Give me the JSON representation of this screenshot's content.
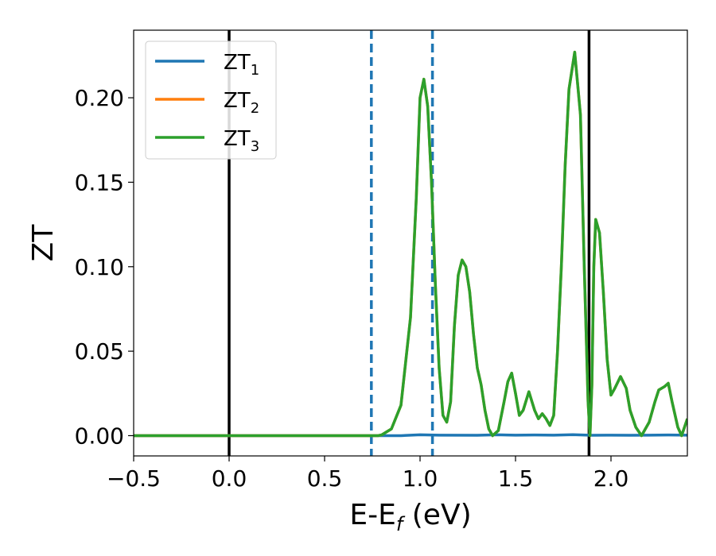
{
  "chart_data": {
    "type": "line",
    "xlabel": "E-E",
    "xlabel_subscript": "f",
    "xlabel_unit": " (eV)",
    "ylabel": "ZT",
    "xlim": [
      -0.5,
      2.4
    ],
    "ylim": [
      -0.012,
      0.24
    ],
    "xticks": [
      -0.5,
      0.0,
      0.5,
      1.0,
      1.5,
      2.0
    ],
    "xtick_labels": [
      "−0.5",
      "0.0",
      "0.5",
      "1.0",
      "1.5",
      "2.0"
    ],
    "yticks": [
      0.0,
      0.05,
      0.1,
      0.15,
      0.2
    ],
    "ytick_labels": [
      "0.00",
      "0.05",
      "0.10",
      "0.15",
      "0.20"
    ],
    "grid": false,
    "legend_position": "upper-left",
    "vertical_lines": [
      {
        "x": 0.0,
        "style": "solid",
        "color": "#000000"
      },
      {
        "x": 0.745,
        "style": "dashed",
        "color": "#1f77b4"
      },
      {
        "x": 1.065,
        "style": "dashed",
        "color": "#1f77b4"
      },
      {
        "x": 1.885,
        "style": "solid",
        "color": "#000000"
      }
    ],
    "series": [
      {
        "name": "ZT",
        "name_subscript": "1",
        "color": "#1f77b4",
        "points": [
          [
            -0.5,
            0.0
          ],
          [
            0.7,
            0.0
          ],
          [
            0.9,
            0.0
          ],
          [
            1.0,
            0.0005
          ],
          [
            1.1,
            0.0003
          ],
          [
            1.3,
            0.0002
          ],
          [
            1.4,
            0.0005
          ],
          [
            1.5,
            0.0003
          ],
          [
            1.6,
            0.0004
          ],
          [
            1.7,
            0.0003
          ],
          [
            1.8,
            0.0006
          ],
          [
            1.9,
            0.0002
          ],
          [
            2.0,
            0.0003
          ],
          [
            2.1,
            0.0002
          ],
          [
            2.2,
            0.0003
          ],
          [
            2.3,
            0.0004
          ],
          [
            2.4,
            0.0003
          ]
        ]
      },
      {
        "name": "ZT",
        "name_subscript": "2",
        "color": "#ff7f0e",
        "points": [
          [
            -0.5,
            0.0
          ],
          [
            0.78,
            0.0
          ],
          [
            0.8,
            0.0005
          ],
          [
            0.85,
            0.004
          ],
          [
            0.9,
            0.018
          ],
          [
            0.95,
            0.07
          ],
          [
            0.98,
            0.14
          ],
          [
            1.0,
            0.2
          ],
          [
            1.02,
            0.211
          ],
          [
            1.04,
            0.195
          ],
          [
            1.06,
            0.15
          ],
          [
            1.08,
            0.09
          ],
          [
            1.1,
            0.04
          ],
          [
            1.12,
            0.012
          ],
          [
            1.14,
            0.008
          ],
          [
            1.16,
            0.02
          ],
          [
            1.18,
            0.065
          ],
          [
            1.2,
            0.095
          ],
          [
            1.22,
            0.104
          ],
          [
            1.24,
            0.1
          ],
          [
            1.26,
            0.085
          ],
          [
            1.28,
            0.06
          ],
          [
            1.3,
            0.04
          ],
          [
            1.32,
            0.03
          ],
          [
            1.34,
            0.015
          ],
          [
            1.36,
            0.004
          ],
          [
            1.38,
            0.0
          ],
          [
            1.41,
            0.003
          ],
          [
            1.44,
            0.02
          ],
          [
            1.46,
            0.032
          ],
          [
            1.48,
            0.037
          ],
          [
            1.5,
            0.025
          ],
          [
            1.52,
            0.012
          ],
          [
            1.54,
            0.015
          ],
          [
            1.57,
            0.026
          ],
          [
            1.6,
            0.015
          ],
          [
            1.62,
            0.01
          ],
          [
            1.64,
            0.013
          ],
          [
            1.66,
            0.01
          ],
          [
            1.68,
            0.006
          ],
          [
            1.7,
            0.012
          ],
          [
            1.72,
            0.05
          ],
          [
            1.74,
            0.1
          ],
          [
            1.76,
            0.16
          ],
          [
            1.78,
            0.205
          ],
          [
            1.81,
            0.227
          ],
          [
            1.84,
            0.19
          ],
          [
            1.86,
            0.1
          ],
          [
            1.88,
            0.02
          ],
          [
            1.89,
            0.0
          ],
          [
            1.9,
            0.03
          ],
          [
            1.91,
            0.1
          ],
          [
            1.92,
            0.128
          ],
          [
            1.94,
            0.12
          ],
          [
            1.96,
            0.085
          ],
          [
            1.98,
            0.045
          ],
          [
            2.0,
            0.024
          ],
          [
            2.02,
            0.028
          ],
          [
            2.05,
            0.035
          ],
          [
            2.08,
            0.028
          ],
          [
            2.1,
            0.015
          ],
          [
            2.13,
            0.005
          ],
          [
            2.16,
            0.0
          ],
          [
            2.2,
            0.008
          ],
          [
            2.23,
            0.02
          ],
          [
            2.25,
            0.027
          ],
          [
            2.28,
            0.029
          ],
          [
            2.3,
            0.031
          ],
          [
            2.32,
            0.02
          ],
          [
            2.35,
            0.005
          ],
          [
            2.37,
            0.0
          ],
          [
            2.4,
            0.01
          ]
        ]
      },
      {
        "name": "ZT",
        "name_subscript": "3",
        "color": "#2ca02c",
        "points": [
          [
            -0.5,
            0.0
          ],
          [
            0.78,
            0.0
          ],
          [
            0.8,
            0.0005
          ],
          [
            0.85,
            0.004
          ],
          [
            0.9,
            0.018
          ],
          [
            0.95,
            0.07
          ],
          [
            0.98,
            0.14
          ],
          [
            1.0,
            0.2
          ],
          [
            1.02,
            0.211
          ],
          [
            1.04,
            0.195
          ],
          [
            1.06,
            0.15
          ],
          [
            1.08,
            0.09
          ],
          [
            1.1,
            0.04
          ],
          [
            1.12,
            0.012
          ],
          [
            1.14,
            0.008
          ],
          [
            1.16,
            0.02
          ],
          [
            1.18,
            0.065
          ],
          [
            1.2,
            0.095
          ],
          [
            1.22,
            0.104
          ],
          [
            1.24,
            0.1
          ],
          [
            1.26,
            0.085
          ],
          [
            1.28,
            0.06
          ],
          [
            1.3,
            0.04
          ],
          [
            1.32,
            0.03
          ],
          [
            1.34,
            0.015
          ],
          [
            1.36,
            0.004
          ],
          [
            1.38,
            0.0
          ],
          [
            1.41,
            0.003
          ],
          [
            1.44,
            0.02
          ],
          [
            1.46,
            0.032
          ],
          [
            1.48,
            0.037
          ],
          [
            1.5,
            0.025
          ],
          [
            1.52,
            0.012
          ],
          [
            1.54,
            0.015
          ],
          [
            1.57,
            0.026
          ],
          [
            1.6,
            0.015
          ],
          [
            1.62,
            0.01
          ],
          [
            1.64,
            0.013
          ],
          [
            1.66,
            0.01
          ],
          [
            1.68,
            0.006
          ],
          [
            1.7,
            0.012
          ],
          [
            1.72,
            0.05
          ],
          [
            1.74,
            0.1
          ],
          [
            1.76,
            0.16
          ],
          [
            1.78,
            0.205
          ],
          [
            1.81,
            0.227
          ],
          [
            1.84,
            0.19
          ],
          [
            1.86,
            0.1
          ],
          [
            1.88,
            0.02
          ],
          [
            1.89,
            0.0
          ],
          [
            1.9,
            0.03
          ],
          [
            1.91,
            0.1
          ],
          [
            1.92,
            0.128
          ],
          [
            1.94,
            0.12
          ],
          [
            1.96,
            0.085
          ],
          [
            1.98,
            0.045
          ],
          [
            2.0,
            0.024
          ],
          [
            2.02,
            0.028
          ],
          [
            2.05,
            0.035
          ],
          [
            2.08,
            0.028
          ],
          [
            2.1,
            0.015
          ],
          [
            2.13,
            0.005
          ],
          [
            2.16,
            0.0
          ],
          [
            2.2,
            0.008
          ],
          [
            2.23,
            0.02
          ],
          [
            2.25,
            0.027
          ],
          [
            2.28,
            0.029
          ],
          [
            2.3,
            0.031
          ],
          [
            2.32,
            0.02
          ],
          [
            2.35,
            0.005
          ],
          [
            2.37,
            0.0
          ],
          [
            2.4,
            0.01
          ]
        ]
      }
    ]
  }
}
